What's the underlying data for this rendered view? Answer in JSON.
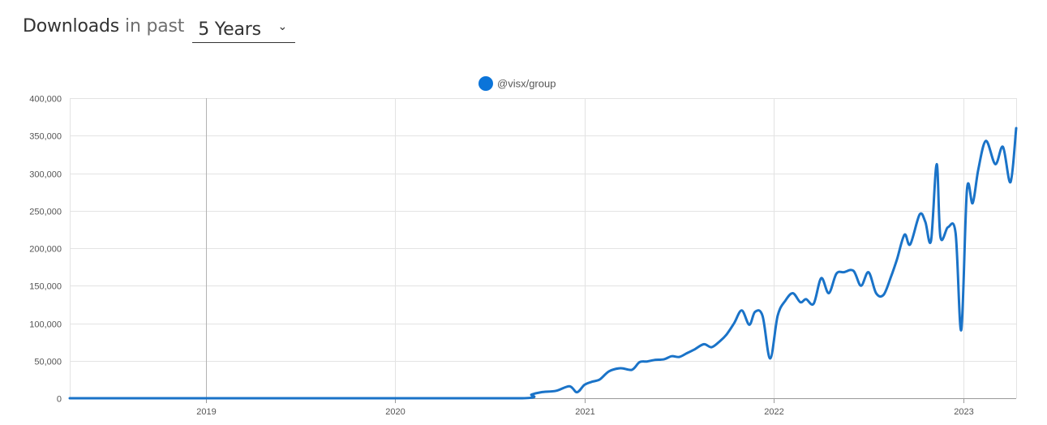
{
  "header": {
    "title_strong": "Downloads",
    "title_light": "in past",
    "range_select": {
      "selected": "5 Years"
    }
  },
  "icons": {
    "select_caret": "chevron-down-icon",
    "legend_marker": "circle-icon"
  },
  "colors": {
    "series": "#1a73c8",
    "legend_dot": "#0b74d9",
    "grid": "#e3e3e3"
  },
  "chart_data": {
    "type": "line",
    "title": "",
    "xlabel": "",
    "ylabel": "",
    "legend_position": "top-center",
    "grid": true,
    "ylim": [
      0,
      400000
    ],
    "xlim": [
      2018.28,
      2023.28
    ],
    "y_ticks": [
      0,
      50000,
      100000,
      150000,
      200000,
      250000,
      300000,
      350000,
      400000
    ],
    "y_tick_labels": [
      "0",
      "50,000",
      "100,000",
      "150,000",
      "200,000",
      "250,000",
      "300,000",
      "350,000",
      "400,000"
    ],
    "x_ticks": [
      2019,
      2020,
      2021,
      2022,
      2023
    ],
    "x_tick_labels": [
      "2019",
      "2020",
      "2021",
      "2022",
      "2023"
    ],
    "series": [
      {
        "name": "@visx/group",
        "x": [
          2018.28,
          2019,
          2020,
          2020.67,
          2020.72,
          2020.77,
          2020.85,
          2020.92,
          2020.96,
          2021.0,
          2021.04,
          2021.08,
          2021.13,
          2021.19,
          2021.25,
          2021.29,
          2021.33,
          2021.37,
          2021.42,
          2021.46,
          2021.5,
          2021.54,
          2021.58,
          2021.63,
          2021.67,
          2021.71,
          2021.75,
          2021.79,
          2021.83,
          2021.87,
          2021.9,
          2021.94,
          2021.98,
          2022.02,
          2022.06,
          2022.1,
          2022.14,
          2022.17,
          2022.21,
          2022.25,
          2022.29,
          2022.33,
          2022.37,
          2022.42,
          2022.46,
          2022.5,
          2022.54,
          2022.58,
          2022.62,
          2022.65,
          2022.69,
          2022.72,
          2022.77,
          2022.8,
          2022.83,
          2022.86,
          2022.88,
          2022.92,
          2022.96,
          2022.99,
          2023.02,
          2023.05,
          2023.08,
          2023.12,
          2023.17,
          2023.21,
          2023.25,
          2023.28
        ],
        "y": [
          0,
          0,
          0,
          0,
          5000,
          8000,
          10000,
          16000,
          8000,
          18000,
          22000,
          25000,
          36000,
          40000,
          38000,
          48000,
          49000,
          51000,
          52000,
          56000,
          55000,
          60000,
          65000,
          72000,
          68000,
          75000,
          85000,
          100000,
          117000,
          98000,
          115000,
          110000,
          53000,
          110000,
          130000,
          140000,
          128000,
          132000,
          126000,
          160000,
          140000,
          166000,
          168000,
          170000,
          150000,
          168000,
          140000,
          138000,
          163000,
          185000,
          218000,
          205000,
          245000,
          235000,
          210000,
          312000,
          215000,
          228000,
          220000,
          91000,
          278000,
          260000,
          305000,
          343000,
          312000,
          335000,
          288000,
          360000
        ]
      }
    ]
  }
}
